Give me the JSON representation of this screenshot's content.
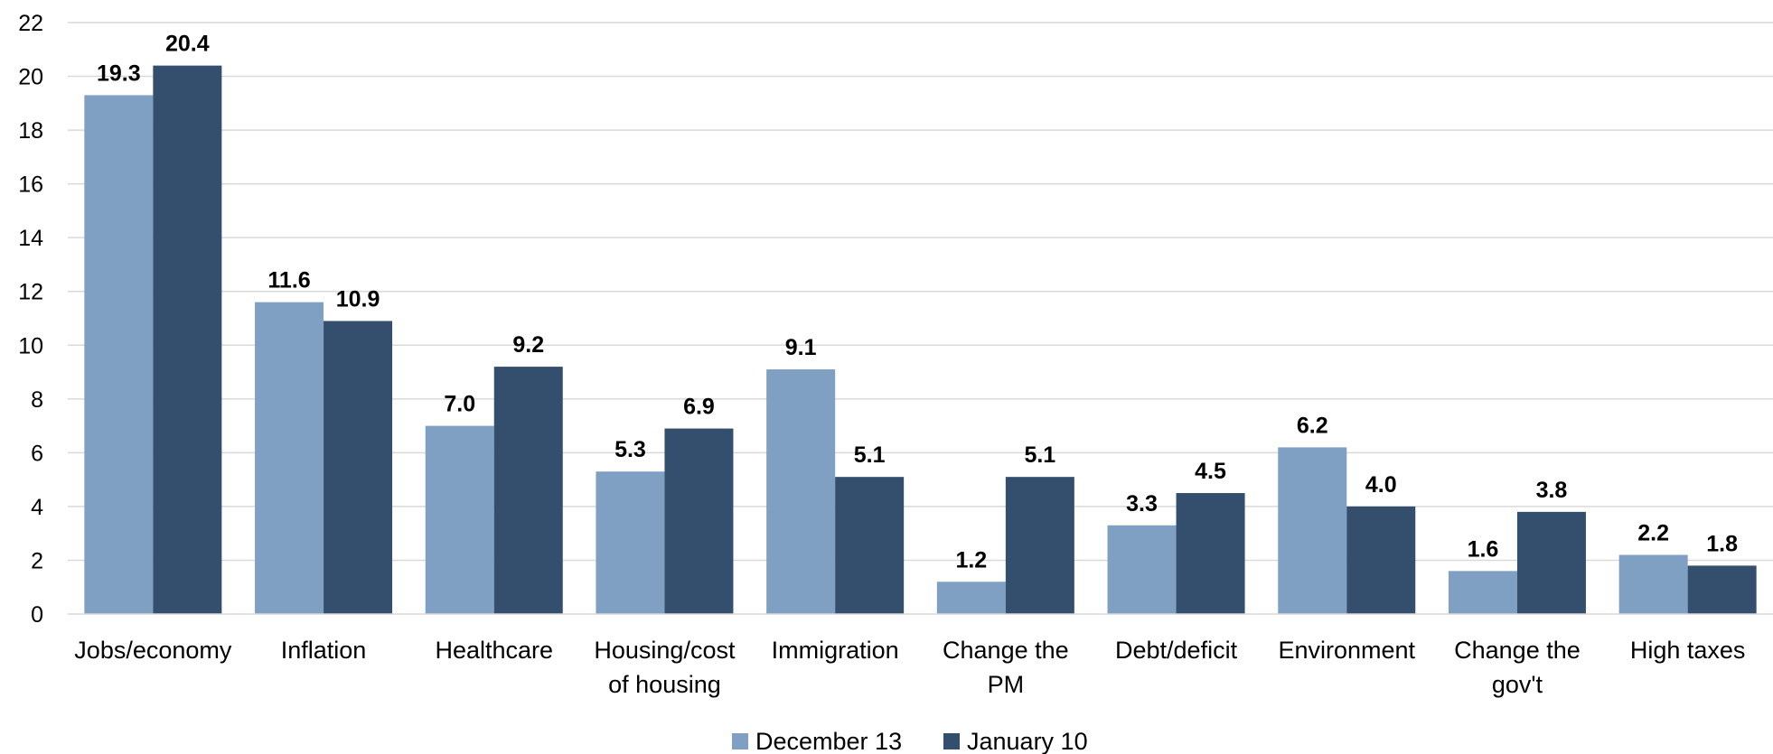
{
  "chart_data": {
    "type": "bar",
    "categories": [
      [
        "Jobs/economy"
      ],
      [
        "Inflation"
      ],
      [
        "Healthcare"
      ],
      [
        "Housing/cost",
        "of housing"
      ],
      [
        "Immigration"
      ],
      [
        "Change the",
        "PM"
      ],
      [
        "Debt/deficit"
      ],
      [
        "Environment"
      ],
      [
        "Change the",
        "gov't"
      ],
      [
        "High taxes"
      ]
    ],
    "series": [
      {
        "name": "December 13",
        "color": "#7f9fc3",
        "values": [
          19.3,
          11.6,
          7.0,
          5.3,
          9.1,
          1.2,
          3.3,
          6.2,
          1.6,
          2.2
        ],
        "labels": [
          "19.3",
          "11.6",
          "7.0",
          "5.3",
          "9.1",
          "1.2",
          "3.3",
          "6.2",
          "1.6",
          "2.2"
        ]
      },
      {
        "name": "January 10",
        "color": "#344f6d",
        "values": [
          20.4,
          10.9,
          9.2,
          6.9,
          5.1,
          5.1,
          4.5,
          4.0,
          3.8,
          1.8
        ],
        "labels": [
          "20.4",
          "10.9",
          "9.2",
          "6.9",
          "5.1",
          "5.1",
          "4.5",
          "4.0",
          "3.8",
          "1.8"
        ]
      }
    ],
    "title": "",
    "xlabel": "",
    "ylabel": "",
    "ylim": [
      0,
      22
    ],
    "yticks": [
      "0",
      "2",
      "4",
      "6",
      "8",
      "10",
      "12",
      "14",
      "16",
      "18",
      "20",
      "22"
    ],
    "grid": true,
    "gridColor": "#d9d9d9",
    "legend": "bottom-center"
  }
}
